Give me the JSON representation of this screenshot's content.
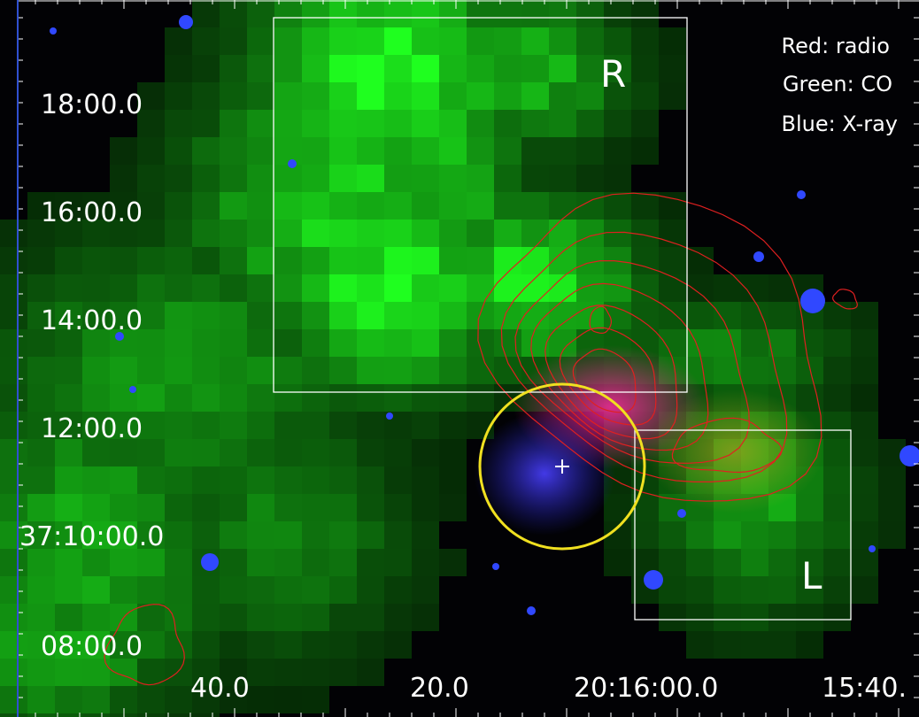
{
  "legend": [
    "Red: radio",
    "Green: CO",
    "Blue: X-ray"
  ],
  "regions": [
    {
      "label": "R"
    },
    {
      "label": "L"
    }
  ],
  "y_axis_labels": [
    "18:00.0",
    "16:00.0",
    "14:00.0",
    "12:00.0",
    "37:10:00.0",
    "08:00.0"
  ],
  "x_axis_labels": [
    "40.0",
    "20.0",
    "20:16:00.0",
    "15:40."
  ]
}
